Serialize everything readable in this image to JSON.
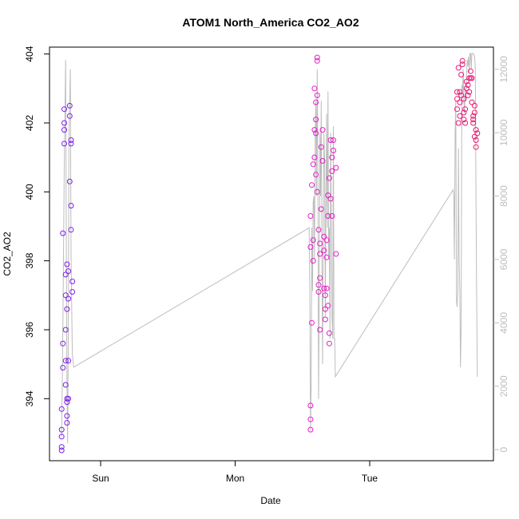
{
  "chart_data": {
    "type": "scatter",
    "title": "ATOM1 North_America CO2_AO2",
    "xlabel": "Date",
    "ylabel": "CO2_AO2",
    "x_ticks": [
      {
        "label": "Sun",
        "value": 1.0
      },
      {
        "label": "Mon",
        "value": 2.0
      },
      {
        "label": "Tue",
        "value": 3.0
      }
    ],
    "x_range": [
      0.62,
      3.92
    ],
    "ylim": [
      392.2,
      404.2
    ],
    "y_ticks": [
      394,
      396,
      398,
      400,
      402,
      404
    ],
    "y2lim": [
      -350,
      12700
    ],
    "y2_ticks": [
      0,
      2000,
      4000,
      6000,
      8000,
      10000,
      12000
    ],
    "grid": false,
    "axis_color": "#000000",
    "y2_axis_color": "#bdbdbd",
    "series": [
      {
        "role": "co2_points",
        "marker": "open-circle",
        "color_gradient": [
          "#7b1fe8",
          "#e51ee5",
          "#e8176e"
        ],
        "points": [
          [
            0.71,
            392.5
          ],
          [
            0.71,
            392.9
          ],
          [
            0.71,
            393.1
          ],
          [
            0.71,
            392.6
          ],
          [
            0.71,
            393.7
          ],
          [
            0.72,
            394.9
          ],
          [
            0.72,
            395.6
          ],
          [
            0.72,
            398.8
          ],
          [
            0.73,
            401.8
          ],
          [
            0.73,
            402.0
          ],
          [
            0.73,
            402.4
          ],
          [
            0.73,
            401.4
          ],
          [
            0.74,
            397.6
          ],
          [
            0.74,
            397.0
          ],
          [
            0.74,
            396.0
          ],
          [
            0.74,
            395.1
          ],
          [
            0.74,
            394.4
          ],
          [
            0.75,
            393.9
          ],
          [
            0.75,
            394.0
          ],
          [
            0.75,
            393.5
          ],
          [
            0.75,
            393.3
          ],
          [
            0.75,
            396.6
          ],
          [
            0.75,
            397.9
          ],
          [
            0.76,
            397.7
          ],
          [
            0.76,
            396.9
          ],
          [
            0.76,
            395.1
          ],
          [
            0.76,
            394.0
          ],
          [
            0.77,
            402.2
          ],
          [
            0.77,
            402.5
          ],
          [
            0.77,
            400.3
          ],
          [
            0.78,
            401.4
          ],
          [
            0.78,
            401.5
          ],
          [
            0.78,
            399.6
          ],
          [
            0.78,
            398.9
          ],
          [
            0.79,
            397.4
          ],
          [
            0.79,
            397.1
          ],
          [
            2.56,
            393.1
          ],
          [
            2.56,
            393.4
          ],
          [
            2.56,
            393.8
          ],
          [
            2.57,
            396.2
          ],
          [
            2.56,
            398.4
          ],
          [
            2.56,
            399.3
          ],
          [
            2.57,
            400.2
          ],
          [
            2.58,
            400.8
          ],
          [
            2.58,
            398.0
          ],
          [
            2.58,
            398.6
          ],
          [
            2.59,
            401.0
          ],
          [
            2.59,
            401.8
          ],
          [
            2.59,
            403.0
          ],
          [
            2.6,
            402.6
          ],
          [
            2.6,
            402.1
          ],
          [
            2.6,
            401.7
          ],
          [
            2.6,
            400.5
          ],
          [
            2.61,
            403.9
          ],
          [
            2.61,
            403.8
          ],
          [
            2.61,
            402.8
          ],
          [
            2.61,
            400.0
          ],
          [
            2.62,
            398.9
          ],
          [
            2.62,
            397.1
          ],
          [
            2.62,
            397.3
          ],
          [
            2.63,
            397.5
          ],
          [
            2.63,
            396.0
          ],
          [
            2.63,
            398.2
          ],
          [
            2.63,
            398.5
          ],
          [
            2.64,
            399.5
          ],
          [
            2.64,
            401.3
          ],
          [
            2.65,
            400.9
          ],
          [
            2.65,
            401.8
          ],
          [
            2.66,
            398.7
          ],
          [
            2.66,
            398.3
          ],
          [
            2.66,
            397.2
          ],
          [
            2.67,
            396.6
          ],
          [
            2.67,
            396.3
          ],
          [
            2.67,
            397.0
          ],
          [
            2.68,
            397.2
          ],
          [
            2.68,
            398.1
          ],
          [
            2.68,
            398.6
          ],
          [
            2.69,
            399.9
          ],
          [
            2.69,
            399.3
          ],
          [
            2.69,
            396.7
          ],
          [
            2.7,
            395.6
          ],
          [
            2.7,
            395.9
          ],
          [
            2.7,
            400.4
          ],
          [
            2.71,
            401.5
          ],
          [
            2.71,
            399.8
          ],
          [
            2.72,
            400.6
          ],
          [
            2.72,
            399.3
          ],
          [
            2.72,
            401.0
          ],
          [
            2.73,
            401.5
          ],
          [
            2.73,
            401.2
          ],
          [
            2.75,
            400.7
          ],
          [
            2.75,
            398.2
          ],
          [
            3.65,
            402.7
          ],
          [
            3.65,
            402.9
          ],
          [
            3.65,
            402.4
          ],
          [
            3.66,
            402.0
          ],
          [
            3.66,
            403.6
          ],
          [
            3.67,
            402.6
          ],
          [
            3.67,
            402.2
          ],
          [
            3.67,
            402.9
          ],
          [
            3.68,
            402.8
          ],
          [
            3.68,
            403.4
          ],
          [
            3.69,
            403.7
          ],
          [
            3.69,
            403.8
          ],
          [
            3.7,
            402.7
          ],
          [
            3.7,
            402.3
          ],
          [
            3.7,
            402.1
          ],
          [
            3.71,
            402.0
          ],
          [
            3.71,
            402.4
          ],
          [
            3.72,
            403.0
          ],
          [
            3.72,
            403.2
          ],
          [
            3.73,
            403.1
          ],
          [
            3.73,
            402.8
          ],
          [
            3.74,
            403.3
          ],
          [
            3.74,
            402.9
          ],
          [
            3.75,
            403.5
          ],
          [
            3.75,
            403.3
          ],
          [
            3.76,
            402.6
          ],
          [
            3.76,
            403.3
          ],
          [
            3.77,
            402.2
          ],
          [
            3.77,
            402.1
          ],
          [
            3.77,
            402.0
          ],
          [
            3.78,
            402.5
          ],
          [
            3.78,
            402.3
          ],
          [
            3.78,
            401.6
          ],
          [
            3.79,
            401.5
          ],
          [
            3.79,
            401.3
          ],
          [
            3.79,
            401.8
          ],
          [
            3.8,
            401.7
          ]
        ]
      },
      {
        "role": "right_axis_line",
        "marker": "line",
        "color": "#bdbdbd",
        "points": [
          [
            0.71,
            400
          ],
          [
            0.72,
            4000
          ],
          [
            0.73,
            9000
          ],
          [
            0.74,
            12300
          ],
          [
            0.745,
            6000
          ],
          [
            0.75,
            2000
          ],
          [
            0.755,
            200
          ],
          [
            0.76,
            4000
          ],
          [
            0.765,
            10000
          ],
          [
            0.77,
            11000
          ],
          [
            0.775,
            12000
          ],
          [
            0.78,
            6000
          ],
          [
            0.79,
            3000
          ],
          [
            0.8,
            2600
          ],
          [
            0.8,
            2600
          ],
          [
            2.55,
            7000
          ],
          [
            2.555,
            5000
          ],
          [
            2.56,
            600
          ],
          [
            2.565,
            2000
          ],
          [
            2.57,
            7000
          ],
          [
            2.575,
            5000
          ],
          [
            2.58,
            7800
          ],
          [
            2.585,
            8000
          ],
          [
            2.59,
            6000
          ],
          [
            2.595,
            10000
          ],
          [
            2.6,
            11000
          ],
          [
            2.605,
            8000
          ],
          [
            2.61,
            12000
          ],
          [
            2.615,
            9000
          ],
          [
            2.62,
            1600
          ],
          [
            2.625,
            5000
          ],
          [
            2.63,
            10000
          ],
          [
            2.635,
            8000
          ],
          [
            2.64,
            11000
          ],
          [
            2.645,
            6000
          ],
          [
            2.65,
            2700
          ],
          [
            2.655,
            7000
          ],
          [
            2.66,
            10000
          ],
          [
            2.665,
            9000
          ],
          [
            2.67,
            4200
          ],
          [
            2.675,
            8000
          ],
          [
            2.68,
            10600
          ],
          [
            2.685,
            7000
          ],
          [
            2.69,
            11300
          ],
          [
            2.695,
            6000
          ],
          [
            2.7,
            7000
          ],
          [
            2.705,
            3500
          ],
          [
            2.71,
            10000
          ],
          [
            2.715,
            7000
          ],
          [
            2.72,
            4200
          ],
          [
            2.725,
            3500
          ],
          [
            2.73,
            10200
          ],
          [
            2.735,
            3500
          ],
          [
            2.74,
            3500
          ],
          [
            2.745,
            2300
          ],
          [
            2.745,
            2300
          ],
          [
            3.62,
            8200
          ],
          [
            3.625,
            8000
          ],
          [
            3.63,
            6000
          ],
          [
            3.635,
            10000
          ],
          [
            3.64,
            11000
          ],
          [
            3.645,
            4700
          ],
          [
            3.65,
            4500
          ],
          [
            3.655,
            5000
          ],
          [
            3.66,
            9500
          ],
          [
            3.665,
            6000
          ],
          [
            3.67,
            5000
          ],
          [
            3.675,
            2600
          ],
          [
            3.68,
            4000
          ],
          [
            3.685,
            11500
          ],
          [
            3.69,
            11300
          ],
          [
            3.695,
            12000
          ],
          [
            3.7,
            11000
          ],
          [
            3.705,
            10600
          ],
          [
            3.71,
            11400
          ],
          [
            3.715,
            11000
          ],
          [
            3.72,
            11800
          ],
          [
            3.725,
            12300
          ],
          [
            3.73,
            12100
          ],
          [
            3.735,
            12400
          ],
          [
            3.74,
            11900
          ],
          [
            3.745,
            12500
          ],
          [
            3.75,
            12500
          ],
          [
            3.755,
            12000
          ],
          [
            3.76,
            12500
          ],
          [
            3.77,
            12500
          ],
          [
            3.78,
            12400
          ],
          [
            3.785,
            12000
          ],
          [
            3.79,
            8000
          ],
          [
            3.795,
            5000
          ],
          [
            3.8,
            2300
          ],
          [
            3.8,
            2300
          ]
        ]
      }
    ]
  }
}
